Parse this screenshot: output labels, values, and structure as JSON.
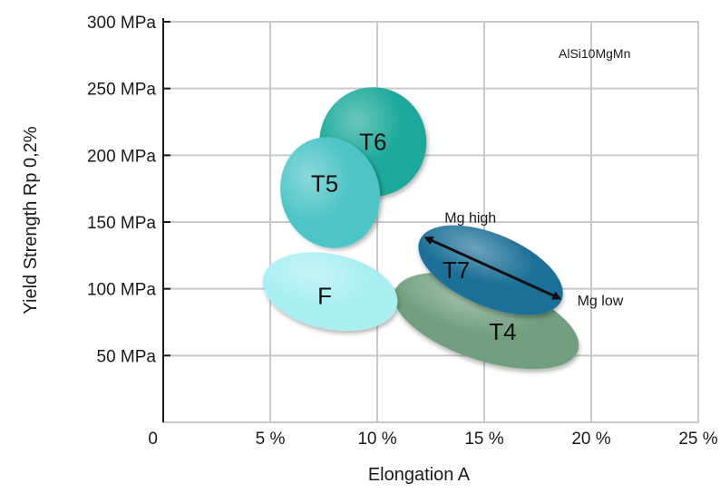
{
  "chart_data": {
    "type": "scatter",
    "title": "",
    "annotation_top_right": "AlSi10MgMn",
    "xlabel": "Elongation  A",
    "ylabel": "Yield Strength Rp 0,2%",
    "xlim": [
      0,
      25
    ],
    "ylim": [
      0,
      300
    ],
    "x_ticks": [
      {
        "value": 0,
        "label": "0"
      },
      {
        "value": 5,
        "label": "5 %"
      },
      {
        "value": 10,
        "label": "10 %"
      },
      {
        "value": 15,
        "label": "15 %"
      },
      {
        "value": 20,
        "label": "20 %"
      },
      {
        "value": 25,
        "label": "25 %"
      }
    ],
    "y_ticks": [
      {
        "value": 50,
        "label": "50 MPa"
      },
      {
        "value": 100,
        "label": "100 MPa"
      },
      {
        "value": 150,
        "label": "150 MPa"
      },
      {
        "value": 200,
        "label": "200 MPa"
      },
      {
        "value": 250,
        "label": "250 MPa"
      },
      {
        "value": 300,
        "label": "300 MPa"
      }
    ],
    "grid": true,
    "regions": [
      {
        "label": "T4",
        "x_center": 15.1,
        "y_center": 76,
        "x_halfwidth": 4.5,
        "y_halfwidth": 30,
        "angle_deg": 18,
        "color": "#6f9e7e"
      },
      {
        "label": "T6",
        "x_center": 9.8,
        "y_center": 210,
        "x_halfwidth": 2.5,
        "y_halfwidth": 41,
        "angle_deg": 0,
        "color": "#1fa99b"
      },
      {
        "label": "T5",
        "x_center": 7.8,
        "y_center": 172,
        "x_halfwidth": 2.3,
        "y_halfwidth": 42,
        "angle_deg": -18,
        "color": "#4ec4c6"
      },
      {
        "label": "F",
        "x_center": 7.8,
        "y_center": 98,
        "x_halfwidth": 3.2,
        "y_halfwidth": 28,
        "angle_deg": 12,
        "color": "#a9eff2"
      },
      {
        "label": "T7",
        "x_center": 15.3,
        "y_center": 114,
        "x_halfwidth": 3.6,
        "y_halfwidth": 27,
        "angle_deg": 23,
        "color": "#1f6f97"
      }
    ],
    "arrow": {
      "x1": 12.3,
      "y1": 138,
      "x2": 18.5,
      "y2": 93,
      "label_start": "Mg high",
      "label_end": "Mg low"
    }
  }
}
